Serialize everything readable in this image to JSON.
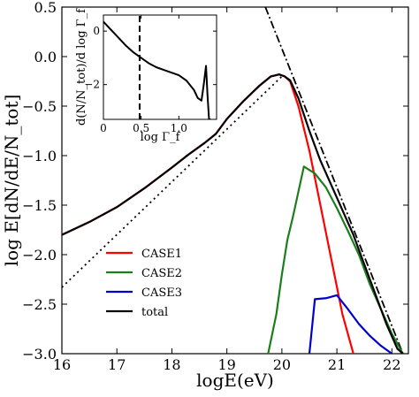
{
  "chart_data": [
    {
      "type": "line",
      "xlabel": "logE(eV)",
      "ylabel": "log E[dN/dE/N_tot]",
      "xlim": [
        16,
        22.3
      ],
      "ylim": [
        -3.0,
        0.5
      ],
      "xticks": [
        16,
        17,
        18,
        19,
        20,
        21,
        22
      ],
      "yticks": [
        0.5,
        0.0,
        -0.5,
        -1.0,
        -1.5,
        -2.0,
        -2.5,
        -3.0
      ],
      "xtick_labels": [
        "16",
        "17",
        "18",
        "19",
        "20",
        "21",
        "22"
      ],
      "ytick_labels": [
        "0.5",
        "0.0",
        "−0.5",
        "−1.0",
        "−1.5",
        "−2.0",
        "−2.5",
        "−3.0"
      ],
      "legend": "lower-left",
      "series": [
        {
          "name": "CASE1",
          "color": "#ff0000",
          "x": [
            16,
            16.5,
            17,
            17.5,
            18,
            18.3,
            18.6,
            18.8,
            19.0,
            19.3,
            19.6,
            19.8,
            19.95,
            20.05,
            20.15,
            20.3,
            20.5,
            20.7,
            20.9,
            21.1,
            21.3
          ],
          "y": [
            -1.8,
            -1.67,
            -1.52,
            -1.33,
            -1.12,
            -0.99,
            -0.87,
            -0.78,
            -0.63,
            -0.45,
            -0.29,
            -0.2,
            -0.18,
            -0.2,
            -0.25,
            -0.5,
            -0.95,
            -1.5,
            -2.05,
            -2.6,
            -3.0
          ]
        },
        {
          "name": "CASE2",
          "color": "#1a7f1a",
          "x": [
            19.75,
            19.9,
            20.0,
            20.1,
            20.2,
            20.4,
            20.6,
            20.8,
            21.0,
            21.2,
            21.4,
            21.6,
            21.8,
            22.0,
            22.2
          ],
          "y": [
            -3.0,
            -2.6,
            -2.2,
            -1.85,
            -1.62,
            -1.11,
            -1.18,
            -1.32,
            -1.53,
            -1.76,
            -2.0,
            -2.3,
            -2.55,
            -2.8,
            -3.0
          ]
        },
        {
          "name": "CASE3",
          "color": "#0000cc",
          "x": [
            20.5,
            20.6,
            20.8,
            21.0,
            21.2,
            21.4,
            21.6,
            21.8,
            22.0
          ],
          "y": [
            -3.0,
            -2.45,
            -2.44,
            -2.41,
            -2.55,
            -2.7,
            -2.82,
            -2.92,
            -3.0
          ]
        },
        {
          "name": "total",
          "color": "#000000",
          "x": [
            16,
            16.5,
            17,
            17.5,
            18,
            18.3,
            18.6,
            18.8,
            19.0,
            19.3,
            19.6,
            19.8,
            19.95,
            20.05,
            20.15,
            20.3,
            20.5,
            20.7,
            20.9,
            21.1,
            21.3,
            21.5,
            21.7,
            21.9,
            22.1,
            22.2
          ],
          "y": [
            -1.8,
            -1.67,
            -1.52,
            -1.33,
            -1.12,
            -0.99,
            -0.87,
            -0.78,
            -0.63,
            -0.45,
            -0.29,
            -0.2,
            -0.18,
            -0.2,
            -0.24,
            -0.42,
            -0.75,
            -1.05,
            -1.3,
            -1.55,
            -1.8,
            -2.1,
            -2.4,
            -2.7,
            -2.95,
            -3.0
          ]
        }
      ],
      "reference_lines": [
        {
          "style": "dotted",
          "color": "#000000",
          "x": [
            16,
            20.0
          ],
          "y": [
            -2.33,
            -0.2
          ]
        },
        {
          "style": "dashdot",
          "color": "#000000",
          "x": [
            19.7,
            22.2
          ],
          "y": [
            0.5,
            -3.0
          ]
        }
      ]
    },
    {
      "type": "line",
      "inset": true,
      "xlabel": "log Γ_f",
      "ylabel": "d(N/N_tot)/d log Γ_f",
      "xlim": [
        0,
        1.5
      ],
      "ylim": [
        -3.3,
        0.6
      ],
      "xticks": [
        0,
        0.5,
        1.0
      ],
      "yticks": [
        0,
        -2
      ],
      "xtick_labels": [
        "0",
        "0.5",
        "1.0"
      ],
      "ytick_labels": [
        "0",
        "−2"
      ],
      "series": [
        {
          "color": "#000000",
          "x": [
            0.0,
            0.1,
            0.2,
            0.3,
            0.4,
            0.5,
            0.6,
            0.7,
            0.8,
            0.9,
            1.0,
            1.1,
            1.2,
            1.25,
            1.3,
            1.33,
            1.36,
            1.38,
            1.4,
            1.42
          ],
          "y": [
            0.35,
            0.05,
            -0.25,
            -0.55,
            -0.8,
            -1.0,
            -1.2,
            -1.35,
            -1.45,
            -1.55,
            -1.65,
            -1.85,
            -2.2,
            -2.5,
            -2.6,
            -2.0,
            -1.3,
            -2.4,
            -3.3,
            -3.3
          ]
        }
      ],
      "reference_lines": [
        {
          "style": "dashed",
          "color": "#000000",
          "x": [
            0.48,
            0.48
          ],
          "y": [
            -3.3,
            0.6
          ]
        }
      ]
    }
  ]
}
